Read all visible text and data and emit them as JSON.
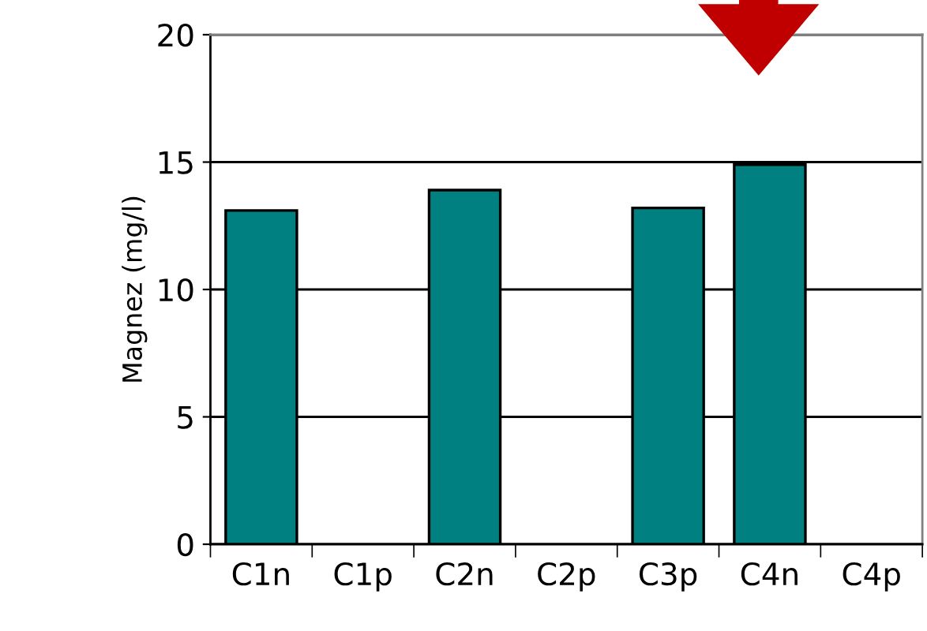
{
  "chart_data": {
    "type": "bar",
    "ylabel": "Magnez (mg/l)",
    "categories": [
      "C1n",
      "C1p",
      "C2n",
      "C2p",
      "C3p",
      "C4n",
      "C4p"
    ],
    "values": [
      13.1,
      null,
      13.9,
      null,
      13.2,
      14.9,
      null
    ],
    "color": "#008080",
    "ylim": [
      0,
      20
    ],
    "yticks": [
      0,
      5,
      10,
      15,
      20
    ],
    "grid": "y"
  }
}
